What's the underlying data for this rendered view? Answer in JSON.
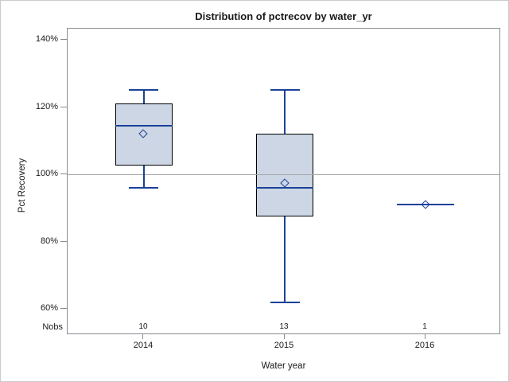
{
  "chart_data": {
    "type": "boxplot",
    "title": "Distribution of pctrecov by water_yr",
    "xlabel": "Water year",
    "ylabel": "Pct Recovery",
    "nobs_row_label": "Nobs",
    "categories": [
      "2014",
      "2015",
      "2016"
    ],
    "nobs": [
      "10",
      "13",
      "1"
    ],
    "yticks": [
      {
        "value": 140,
        "label": "140%"
      },
      {
        "value": 120,
        "label": "120%"
      },
      {
        "value": 100,
        "label": "100%"
      },
      {
        "value": 80,
        "label": "80%"
      },
      {
        "value": 60,
        "label": "60%"
      }
    ],
    "ylim": [
      52,
      143.5
    ],
    "reference_line": 100,
    "grid": "horizontal reference line at 100% only",
    "legend": "none",
    "series": [
      {
        "category": "2014",
        "nobs": 10,
        "whisker_low": 96,
        "q1": 102.5,
        "median": 114.5,
        "mean": 112,
        "q3": 121,
        "whisker_high": 125
      },
      {
        "category": "2015",
        "nobs": 13,
        "whisker_low": 62,
        "q1": 87.5,
        "median": 96,
        "mean": 97.5,
        "q3": 112,
        "whisker_high": 125
      },
      {
        "category": "2016",
        "nobs": 1,
        "whisker_low": 91,
        "q1": 91,
        "median": 91,
        "mean": 91,
        "q3": 91,
        "whisker_high": 91
      }
    ],
    "colors": {
      "box_fill": "#ccd6e4",
      "box_border": "#000000",
      "line": "#1b4299",
      "reference_line": "#a6a6a6",
      "frame": "#878c91",
      "text": "#1a1a1a",
      "figure_border": "#c9ccce"
    }
  }
}
